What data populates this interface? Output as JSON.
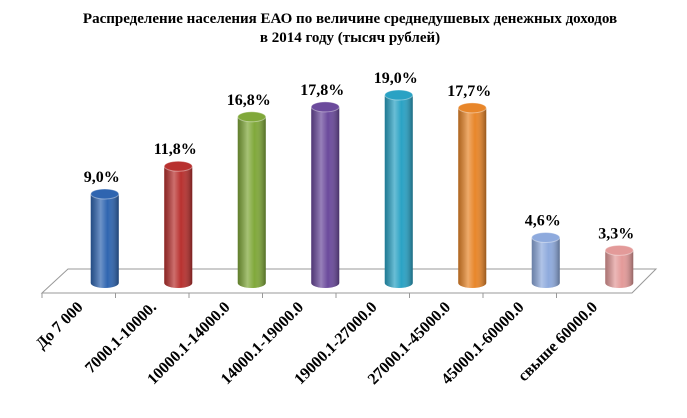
{
  "chart_data": {
    "type": "bar",
    "title": "Распределение населения ЕАО  по величине среднедушевых денежных доходов в 2014 году (тысяч рублей)",
    "categories": [
      "До 7 000",
      "7000.1-10000.",
      "10000.1-14000.0",
      "14000.1-19000.0",
      "19000.1-27000.0",
      "27000.1-45000.0",
      "45000.1-60000.0",
      "свыше 60000.0"
    ],
    "values": [
      9.0,
      11.8,
      16.8,
      17.8,
      19.0,
      17.7,
      4.6,
      3.3
    ],
    "value_labels": [
      "9,0%",
      "11,8%",
      "16,8%",
      "17,8%",
      "19,0%",
      "17,7%",
      "4,6%",
      "3,3%"
    ],
    "colors": [
      "#2f65b0",
      "#b8312f",
      "#80a83a",
      "#6b4a9c",
      "#2aa2c4",
      "#e8862a",
      "#8eaadd",
      "#e39a99"
    ]
  }
}
